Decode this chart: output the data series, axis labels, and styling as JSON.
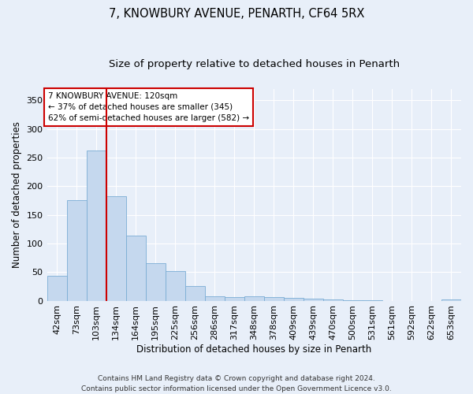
{
  "title": "7, KNOWBURY AVENUE, PENARTH, CF64 5RX",
  "subtitle": "Size of property relative to detached houses in Penarth",
  "xlabel": "Distribution of detached houses by size in Penarth",
  "ylabel": "Number of detached properties",
  "categories": [
    "42sqm",
    "73sqm",
    "103sqm",
    "134sqm",
    "164sqm",
    "195sqm",
    "225sqm",
    "256sqm",
    "286sqm",
    "317sqm",
    "348sqm",
    "378sqm",
    "409sqm",
    "439sqm",
    "470sqm",
    "500sqm",
    "531sqm",
    "561sqm",
    "592sqm",
    "622sqm",
    "653sqm"
  ],
  "values": [
    44,
    175,
    262,
    183,
    113,
    65,
    52,
    25,
    8,
    6,
    8,
    6,
    5,
    3,
    2,
    1,
    1,
    0,
    0,
    0,
    2
  ],
  "bar_color": "#c5d8ee",
  "bar_edge_color": "#7aadd4",
  "background_color": "#e8eff9",
  "grid_color": "#ffffff",
  "vline_color": "#cc0000",
  "vline_x_index": 2,
  "annotation_title": "7 KNOWBURY AVENUE: 120sqm",
  "annotation_line1": "← 37% of detached houses are smaller (345)",
  "annotation_line2": "62% of semi-detached houses are larger (582) →",
  "annotation_box_color": "#ffffff",
  "annotation_box_edge": "#cc0000",
  "footer1": "Contains HM Land Registry data © Crown copyright and database right 2024.",
  "footer2": "Contains public sector information licensed under the Open Government Licence v3.0.",
  "ylim": [
    0,
    370
  ],
  "yticks": [
    0,
    50,
    100,
    150,
    200,
    250,
    300,
    350
  ],
  "title_fontsize": 10.5,
  "subtitle_fontsize": 9.5,
  "tick_fontsize": 8,
  "ylabel_fontsize": 8.5,
  "xlabel_fontsize": 8.5,
  "footer_fontsize": 6.5
}
